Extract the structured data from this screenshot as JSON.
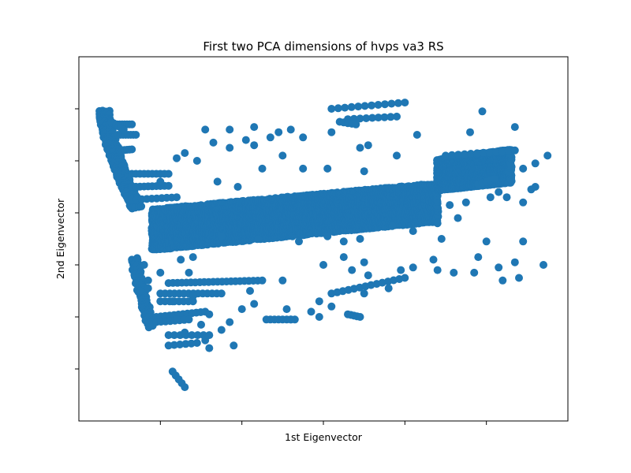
{
  "chart_data": {
    "type": "scatter",
    "title": "First two PCA dimensions of hvps va3 RS",
    "xlabel": "1st Eigenvector",
    "ylabel": "2nd Eigenvector",
    "xlim": [
      -1.0,
      5.0
    ],
    "ylim": [
      -4.0,
      3.0
    ],
    "x_ticks": [
      0,
      1,
      2,
      3,
      4
    ],
    "y_ticks": [
      -3,
      -2,
      -1,
      0,
      1,
      2
    ],
    "tick_labels_shown": false,
    "grid": false,
    "marker_color": "#1f77b4",
    "bands": [
      {
        "x0": -0.1,
        "x1": 3.4,
        "y_low0": -0.7,
        "y_high0": 0.05,
        "y_low1": -0.15,
        "y_high1": 0.55
      },
      {
        "x0": 3.4,
        "x1": 4.3,
        "y_low0": 0.45,
        "y_high0": 1.0,
        "y_low1": 0.6,
        "y_high1": 1.2
      }
    ],
    "edge_curve": {
      "x0": -0.75,
      "y0": 1.95,
      "x1": -0.35,
      "y1": 0.1,
      "n": 60
    },
    "lines": [
      {
        "x0": -0.62,
        "y0": 1.7,
        "x1": -0.35,
        "y1": 1.7,
        "n": 10
      },
      {
        "x0": -0.52,
        "y0": 1.5,
        "x1": -0.3,
        "y1": 1.5,
        "n": 8
      },
      {
        "x0": -0.5,
        "y0": 1.2,
        "x1": -0.35,
        "y1": 1.22,
        "n": 6
      },
      {
        "x0": -0.35,
        "y0": 0.75,
        "x1": 0.1,
        "y1": 0.75,
        "n": 10
      },
      {
        "x0": -0.35,
        "y0": 0.5,
        "x1": 0.1,
        "y1": 0.52,
        "n": 10
      },
      {
        "x0": -0.35,
        "y0": 0.25,
        "x1": 0.2,
        "y1": 0.3,
        "n": 10
      },
      {
        "x0": 0.1,
        "y0": -1.35,
        "x1": 1.25,
        "y1": -1.3,
        "n": 22
      },
      {
        "x0": 0.0,
        "y0": -1.55,
        "x1": 0.75,
        "y1": -1.55,
        "n": 14
      },
      {
        "x0": 0.0,
        "y0": -1.7,
        "x1": 0.4,
        "y1": -1.7,
        "n": 8
      },
      {
        "x0": -0.05,
        "y0": -2.0,
        "x1": 0.55,
        "y1": -1.9,
        "n": 12
      },
      {
        "x0": -0.05,
        "y0": -2.1,
        "x1": 0.35,
        "y1": -2.05,
        "n": 8
      },
      {
        "x0": 0.1,
        "y0": -2.35,
        "x1": 0.6,
        "y1": -2.35,
        "n": 8
      },
      {
        "x0": 0.1,
        "y0": -2.55,
        "x1": 0.45,
        "y1": -2.5,
        "n": 6
      },
      {
        "x0": 1.3,
        "y0": -2.05,
        "x1": 1.65,
        "y1": -2.05,
        "n": 8
      },
      {
        "x0": 2.1,
        "y0": -1.55,
        "x1": 3.0,
        "y1": -1.25,
        "n": 14
      },
      {
        "x0": 2.3,
        "y0": -1.95,
        "x1": 2.45,
        "y1": -2.0,
        "n": 5
      },
      {
        "x0": 0.15,
        "y0": -3.05,
        "x1": 0.3,
        "y1": -3.35,
        "n": 5
      },
      {
        "x0": 2.1,
        "y0": 2.0,
        "x1": 3.0,
        "y1": 2.12,
        "n": 12
      },
      {
        "x0": 2.3,
        "y0": 1.8,
        "x1": 2.9,
        "y1": 1.85,
        "n": 9
      },
      {
        "x0": 2.2,
        "y0": 1.75,
        "x1": 2.4,
        "y1": 1.7,
        "n": 5
      },
      {
        "x0": -0.6,
        "y0": 1.75,
        "x1": -0.45,
        "y1": 1.6,
        "n": 6
      },
      {
        "x0": 3.5,
        "y0": 1.1,
        "x1": 4.35,
        "y1": 1.2,
        "n": 12
      },
      {
        "x0": 3.9,
        "y0": 0.55,
        "x1": 4.1,
        "y1": 0.65,
        "n": 5
      }
    ],
    "points": [
      [
        0.55,
        1.6
      ],
      [
        0.85,
        1.6
      ],
      [
        1.15,
        1.65
      ],
      [
        1.45,
        1.55
      ],
      [
        1.6,
        1.6
      ],
      [
        1.35,
        1.45
      ],
      [
        0.65,
        1.35
      ],
      [
        1.05,
        1.4
      ],
      [
        1.75,
        1.45
      ],
      [
        2.1,
        1.55
      ],
      [
        2.45,
        1.25
      ],
      [
        3.15,
        1.5
      ],
      [
        3.8,
        1.55
      ],
      [
        3.95,
        1.95
      ],
      [
        4.35,
        1.65
      ],
      [
        0.3,
        1.15
      ],
      [
        0.2,
        1.05
      ],
      [
        0.45,
        1.0
      ],
      [
        0.85,
        1.25
      ],
      [
        1.15,
        1.3
      ],
      [
        1.5,
        1.1
      ],
      [
        1.75,
        0.85
      ],
      [
        2.05,
        0.85
      ],
      [
        2.55,
        1.3
      ],
      [
        2.9,
        1.1
      ],
      [
        2.5,
        0.8
      ],
      [
        0.7,
        0.6
      ],
      [
        0.95,
        0.5
      ],
      [
        1.25,
        0.85
      ],
      [
        0.0,
        0.6
      ],
      [
        4.75,
        1.1
      ],
      [
        4.55,
        0.45
      ],
      [
        4.45,
        0.85
      ],
      [
        4.6,
        0.95
      ],
      [
        4.15,
        0.4
      ],
      [
        4.25,
        0.3
      ],
      [
        3.55,
        0.15
      ],
      [
        3.4,
        -0.2
      ],
      [
        3.65,
        -0.1
      ],
      [
        2.05,
        -0.45
      ],
      [
        2.25,
        -0.55
      ],
      [
        2.85,
        -0.25
      ],
      [
        3.1,
        -0.35
      ],
      [
        3.45,
        -0.5
      ],
      [
        0.4,
        -0.85
      ],
      [
        0.75,
        -0.45
      ],
      [
        1.2,
        -0.5
      ],
      [
        1.7,
        -0.55
      ],
      [
        2.45,
        -0.5
      ],
      [
        -0.2,
        -1.0
      ],
      [
        0.25,
        -0.9
      ],
      [
        4.0,
        -0.55
      ],
      [
        4.35,
        -0.95
      ],
      [
        4.45,
        -0.55
      ],
      [
        4.7,
        -1.0
      ],
      [
        3.35,
        -0.9
      ],
      [
        3.4,
        -1.1
      ],
      [
        3.6,
        -1.15
      ],
      [
        3.85,
        -1.15
      ],
      [
        3.9,
        -0.85
      ],
      [
        4.15,
        -1.05
      ],
      [
        4.2,
        -1.3
      ],
      [
        4.4,
        -1.25
      ],
      [
        3.1,
        -1.05
      ],
      [
        2.95,
        -1.1
      ],
      [
        2.5,
        -0.95
      ],
      [
        2.25,
        -0.85
      ],
      [
        2.0,
        -1.0
      ],
      [
        2.35,
        -1.1
      ],
      [
        2.55,
        -1.2
      ],
      [
        1.5,
        -1.3
      ],
      [
        1.1,
        -1.5
      ],
      [
        1.15,
        -1.75
      ],
      [
        1.55,
        -1.85
      ],
      [
        1.85,
        -1.9
      ],
      [
        1.95,
        -1.7
      ],
      [
        2.1,
        -1.8
      ],
      [
        2.5,
        -1.55
      ],
      [
        2.8,
        -1.45
      ],
      [
        0.6,
        -1.95
      ],
      [
        0.85,
        -2.1
      ],
      [
        1.0,
        -1.85
      ],
      [
        0.55,
        -2.45
      ],
      [
        0.75,
        -2.25
      ],
      [
        0.6,
        -2.6
      ],
      [
        0.9,
        -2.55
      ],
      [
        0.35,
        -1.15
      ],
      [
        0.0,
        -1.15
      ],
      [
        -0.15,
        -1.3
      ],
      [
        -0.15,
        -1.45
      ],
      [
        0.4,
        -1.6
      ],
      [
        0.2,
        -2.05
      ],
      [
        0.3,
        -2.3
      ],
      [
        0.5,
        -2.15
      ],
      [
        1.6,
        -2.05
      ],
      [
        1.95,
        -2.0
      ],
      [
        0.15,
        -1.7
      ],
      [
        -0.25,
        -1.5
      ],
      [
        4.45,
        0.2
      ],
      [
        4.6,
        0.5
      ],
      [
        3.75,
        0.2
      ],
      [
        4.05,
        0.3
      ]
    ]
  }
}
